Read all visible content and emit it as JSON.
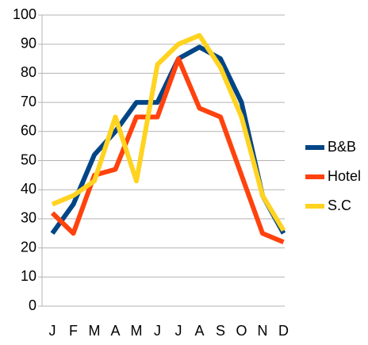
{
  "chart_data": {
    "type": "line",
    "categories": [
      "J",
      "F",
      "M",
      "A",
      "M",
      "J",
      "J",
      "A",
      "S",
      "O",
      "N",
      "D"
    ],
    "series": [
      {
        "name": "B&B",
        "color": "#004586",
        "values": [
          25,
          35,
          52,
          60,
          70,
          70,
          85,
          89,
          85,
          70,
          38,
          25
        ]
      },
      {
        "name": "Hotel",
        "color": "#ff420e",
        "values": [
          32,
          25,
          45,
          47,
          65,
          65,
          85,
          68,
          65,
          45,
          25,
          22
        ]
      },
      {
        "name": "S.C",
        "color": "#ffd320",
        "values": [
          35,
          38,
          43,
          65,
          43,
          83,
          90,
          93,
          82,
          65,
          38,
          26
        ]
      }
    ],
    "ylim": [
      0,
      100
    ],
    "yticks": [
      0,
      10,
      20,
      30,
      40,
      50,
      60,
      70,
      80,
      90,
      100
    ],
    "grid": true,
    "legend": "right"
  }
}
